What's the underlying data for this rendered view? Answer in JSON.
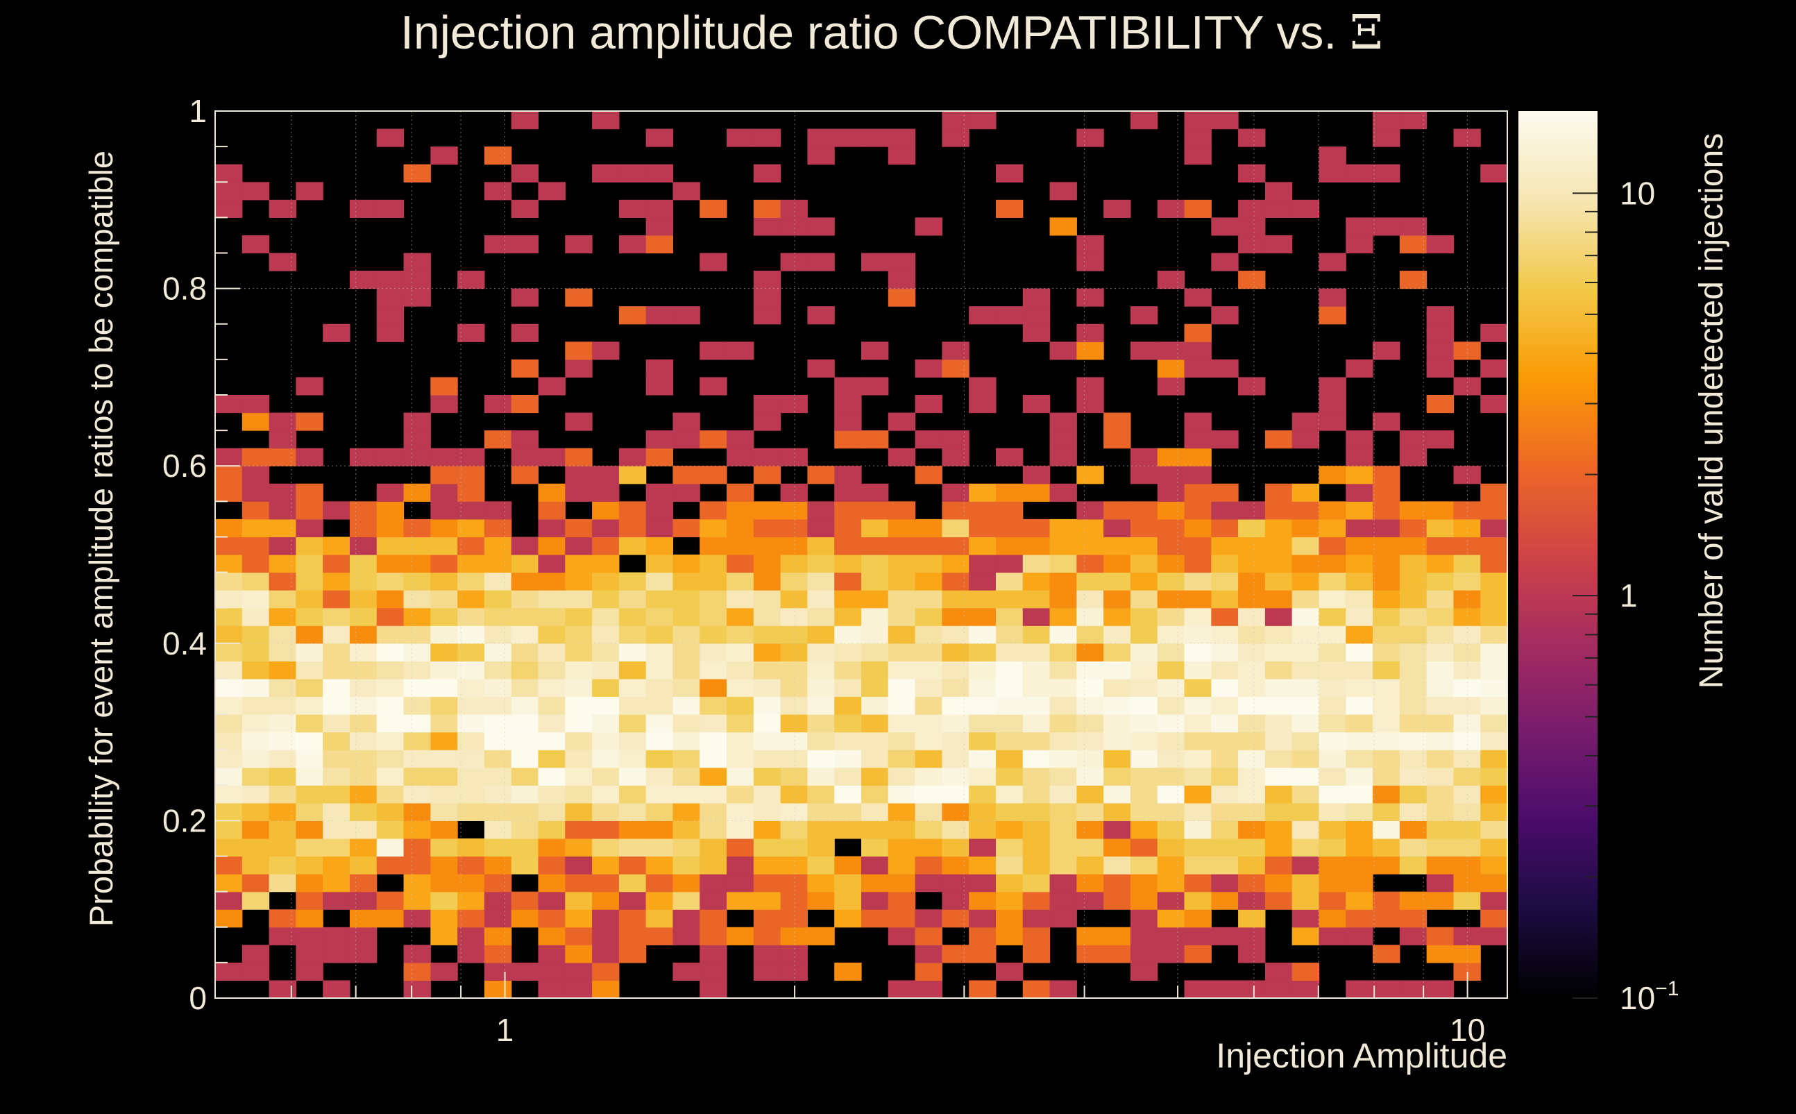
{
  "chart_data": {
    "type": "heatmap",
    "title": "Injection amplitude ratio COMPATIBILITY vs. ",
    "title_symbol": "Ξ",
    "xlabel": "Injection Amplitude",
    "ylabel": "Probability for event amplitude ratios to be compatible",
    "colorbar_label": "Number of valid undetected injections",
    "x_scale": "log",
    "x_range": [
      0.5,
      11
    ],
    "y_range": [
      0,
      1
    ],
    "x_ticks": [
      {
        "value": 1,
        "label": "1"
      },
      {
        "value": 10,
        "label": "10"
      }
    ],
    "y_ticks": [
      {
        "value": 0,
        "label": "0"
      },
      {
        "value": 0.2,
        "label": "0.2"
      },
      {
        "value": 0.4,
        "label": "0.4"
      },
      {
        "value": 0.6,
        "label": "0.6"
      },
      {
        "value": 0.8,
        "label": "0.8"
      },
      {
        "value": 1,
        "label": "1"
      }
    ],
    "z_scale": "log",
    "z_range": [
      0.1,
      16
    ],
    "z_ticks": [
      {
        "value": 0.1,
        "label_base": "10",
        "label_exp": "−1"
      },
      {
        "value": 1,
        "label_base": "1",
        "label_exp": ""
      },
      {
        "value": 10,
        "label_base": "10",
        "label_exp": ""
      }
    ],
    "colormap": [
      "#000000",
      "#1b0c41",
      "#4a0c6b",
      "#781c6d",
      "#a52c60",
      "#cf4446",
      "#ed6925",
      "#fb9b06",
      "#f2c94a",
      "#f6e6b4",
      "#fcfbee"
    ],
    "grid": true,
    "nx": 48,
    "ny": 50,
    "counts_note_sampled": true
  }
}
